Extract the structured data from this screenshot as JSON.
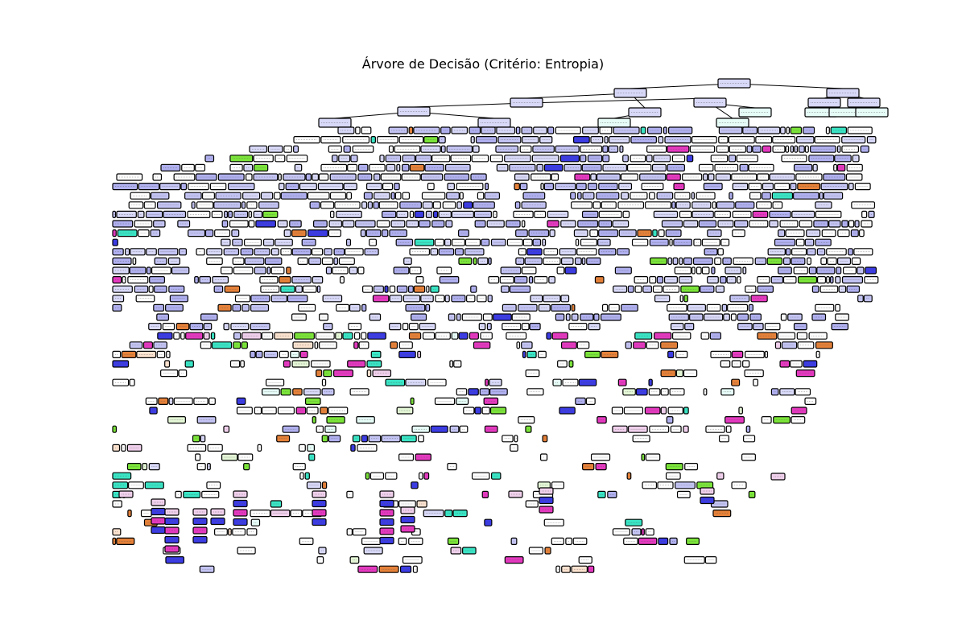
{
  "figure": {
    "title": "Árvore de Decisão (Critério: Entropia)"
  },
  "tree": {
    "criterion": "Entropia",
    "node_style": "rounded boxes with black borders, filled by majority class",
    "edge_color": "#000000",
    "class_colors": [
      "#3c3ce6",
      "#e539c0",
      "#39e5c5",
      "#7be539",
      "#e58139",
      "#ffffff"
    ],
    "impure_tints": [
      "#d8d8f8",
      "#c4c4f4",
      "#b0b0f0",
      "#e6fcf7",
      "#f0d0ec",
      "#fbe2cf",
      "#e4f7d6"
    ]
  }
}
